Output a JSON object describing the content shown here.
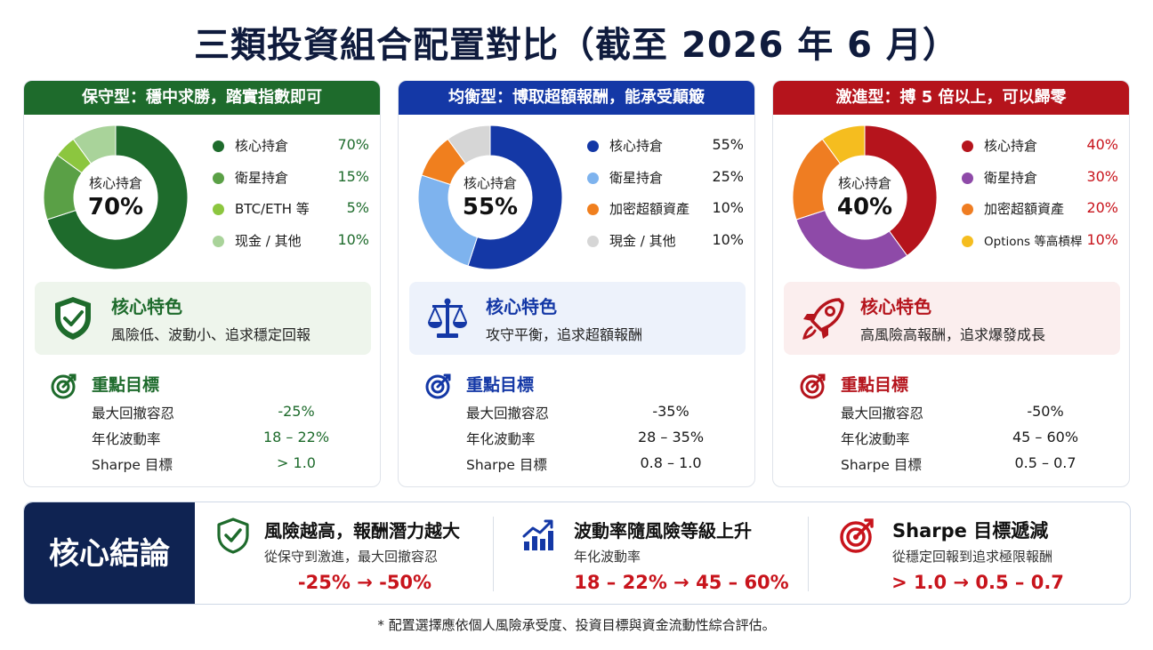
{
  "title": "三類投資組合配置對比（截至 2026 年 6 月）",
  "colors": {
    "conservative": "#1e6b2c",
    "balanced": "#1438a6",
    "aggressive": "#b5141c",
    "navy": "#0f2352",
    "accent_red": "#c8141c"
  },
  "panels": [
    {
      "key": "conservative",
      "header": "保守型：穩中求勝，踏實指數即可",
      "header_color": "#1e6b2c",
      "center_label": "核心持倉",
      "center_value": "70%",
      "value_color": "#1e6b2c",
      "feature_bg": "#eef5ec",
      "feature_title": "核心特色",
      "feature_desc": "風險低、波動小、追求穩定回報",
      "feature_icon": "shield-check-icon",
      "goals_title": "重點目標",
      "goals": [
        {
          "label": "最大回撤容忍",
          "value": "-25%"
        },
        {
          "label": "年化波動率",
          "value": "18 – 22%"
        },
        {
          "label": "Sharpe 目標",
          "value": "> 1.0"
        }
      ]
    },
    {
      "key": "balanced",
      "header": "均衡型：博取超額報酬，能承受顛簸",
      "header_color": "#1438a6",
      "center_label": "核心持倉",
      "center_value": "55%",
      "value_color": "#1a1a1a",
      "feature_bg": "#edf2fb",
      "feature_title": "核心特色",
      "feature_desc": "攻守平衡，追求超額報酬",
      "feature_icon": "balance-scale-icon",
      "goals_title": "重點目標",
      "goals": [
        {
          "label": "最大回撤容忍",
          "value": "-35%"
        },
        {
          "label": "年化波動率",
          "value": "28 – 35%"
        },
        {
          "label": "Sharpe 目標",
          "value": "0.8 – 1.0"
        }
      ]
    },
    {
      "key": "aggressive",
      "header": "激進型：搏 5 倍以上，可以歸零",
      "header_color": "#b5141c",
      "center_label": "核心持倉",
      "center_value": "40%",
      "value_color": "#c8141c",
      "feature_bg": "#fbeeee",
      "feature_title": "核心特色",
      "feature_desc": "高風險高報酬，追求爆發成長",
      "feature_icon": "rocket-icon",
      "goals_title": "重點目標",
      "goals": [
        {
          "label": "最大回撤容忍",
          "value": "-50%"
        },
        {
          "label": "年化波動率",
          "value": "45 – 60%"
        },
        {
          "label": "Sharpe 目標",
          "value": "0.5 – 0.7"
        }
      ]
    }
  ],
  "chart_data": [
    {
      "type": "pie",
      "categories": [
        "核心持倉",
        "衛星持倉",
        "BTC/ETH 等",
        "现金 / 其他"
      ],
      "values": [
        70,
        15,
        5,
        10
      ],
      "value_labels": [
        "70%",
        "15%",
        "5%",
        "10%"
      ],
      "colors": [
        "#1e6b2c",
        "#5aa046",
        "#8cc63f",
        "#a9d39a"
      ]
    },
    {
      "type": "pie",
      "categories": [
        "核心持倉",
        "衛星持倉",
        "加密超額資產",
        "現金 / 其他"
      ],
      "values": [
        55,
        25,
        10,
        10
      ],
      "value_labels": [
        "55%",
        "25%",
        "10%",
        "10%"
      ],
      "colors": [
        "#1438a6",
        "#7eb3ee",
        "#f07f1e",
        "#d6d6d6"
      ]
    },
    {
      "type": "pie",
      "categories": [
        "核心持倉",
        "衛星持倉",
        "加密超額資產",
        "Options 等高槓桿"
      ],
      "values": [
        40,
        30,
        20,
        10
      ],
      "value_labels": [
        "40%",
        "30%",
        "20%",
        "10%"
      ],
      "colors": [
        "#b5141c",
        "#8e4aa8",
        "#ef7d22",
        "#f5bd1f"
      ]
    }
  ],
  "conclusion": {
    "label": "核心結論",
    "items": [
      {
        "title": "風險越高，報酬潛力越大",
        "sub": "從保守到激進，最大回撤容忍",
        "value": "-25%  →  -50%",
        "icon": "shield-check-icon"
      },
      {
        "title": "波動率隨風險等級上升",
        "sub": "年化波動率",
        "value": "18 – 22%  →  45 – 60%",
        "icon": "bar-chart-up-icon"
      },
      {
        "title": "Sharpe 目標遞減",
        "sub": "從穩定回報到追求極限報酬",
        "value": "> 1.0  →  0.5 – 0.7",
        "icon": "target-icon"
      }
    ]
  },
  "footnote": "* 配置選擇應依個人風險承受度、投資目標與資金流動性綜合評估。"
}
